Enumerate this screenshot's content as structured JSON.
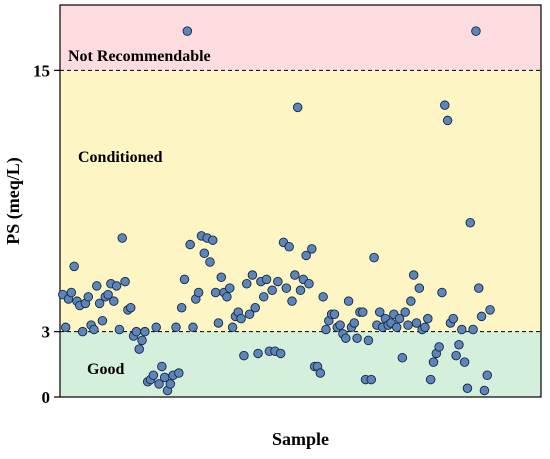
{
  "chart_data": {
    "type": "scatter",
    "xlabel": "Sample",
    "ylabel": "PS (meq/L)",
    "ylim": [
      0,
      18
    ],
    "y_ticks": [
      {
        "value": 0,
        "label": "0"
      },
      {
        "value": 3,
        "label": "3"
      },
      {
        "value": 15,
        "label": "15"
      }
    ],
    "x_range": [
      0,
      170
    ],
    "grid": false,
    "zones": [
      {
        "label": "Good",
        "from": 0,
        "to": 3,
        "color": "#d4f0dc"
      },
      {
        "label": "Conditioned",
        "from": 3,
        "to": 15,
        "color": "#fdf5c4"
      },
      {
        "label": "Not Recommendable",
        "from": 15,
        "to": 18,
        "color": "#fcdcdf"
      }
    ],
    "thresholds": [
      3,
      15
    ],
    "marker_color": "#5b86bb",
    "marker_edge": "#1a2740",
    "points": [
      [
        1,
        4.7
      ],
      [
        2,
        3.2
      ],
      [
        3,
        4.5
      ],
      [
        4,
        4.8
      ],
      [
        5,
        6
      ],
      [
        6,
        4.4
      ],
      [
        7,
        4.2
      ],
      [
        8,
        3
      ],
      [
        9,
        4.3
      ],
      [
        10,
        4.6
      ],
      [
        11,
        3.3
      ],
      [
        12,
        3.1
      ],
      [
        13,
        5.1
      ],
      [
        14,
        4.3
      ],
      [
        15,
        3.5
      ],
      [
        16,
        4.6
      ],
      [
        17,
        4.7
      ],
      [
        18,
        5.2
      ],
      [
        19,
        4.4
      ],
      [
        20,
        5.1
      ],
      [
        21,
        3.1
      ],
      [
        22,
        7.3
      ],
      [
        23,
        5.3
      ],
      [
        24,
        4
      ],
      [
        25,
        4.1
      ],
      [
        26,
        2.8
      ],
      [
        27,
        3
      ],
      [
        28,
        2.2
      ],
      [
        29,
        2.6
      ],
      [
        30,
        3
      ],
      [
        31,
        0.7
      ],
      [
        32,
        0.8
      ],
      [
        33,
        1
      ],
      [
        34,
        3.2
      ],
      [
        35,
        0.6
      ],
      [
        36,
        1.4
      ],
      [
        37,
        0.9
      ],
      [
        38,
        0.3
      ],
      [
        39,
        0.6
      ],
      [
        40,
        1
      ],
      [
        41,
        3.2
      ],
      [
        42,
        1.1
      ],
      [
        43,
        4.1
      ],
      [
        44,
        5.4
      ],
      [
        45,
        16.8
      ],
      [
        46,
        7
      ],
      [
        47,
        3.2
      ],
      [
        48,
        4.5
      ],
      [
        49,
        4.8
      ],
      [
        50,
        7.4
      ],
      [
        51,
        6.6
      ],
      [
        52,
        7.3
      ],
      [
        53,
        6.2
      ],
      [
        54,
        7.2
      ],
      [
        55,
        4.8
      ],
      [
        56,
        3.4
      ],
      [
        57,
        5.5
      ],
      [
        58,
        4.8
      ],
      [
        59,
        4.6
      ],
      [
        60,
        5
      ],
      [
        61,
        3.2
      ],
      [
        62,
        3.7
      ],
      [
        63,
        3.9
      ],
      [
        64,
        3.6
      ],
      [
        65,
        1.9
      ],
      [
        66,
        5.2
      ],
      [
        67,
        3.8
      ],
      [
        68,
        5.6
      ],
      [
        69,
        4.1
      ],
      [
        70,
        2
      ],
      [
        71,
        5.3
      ],
      [
        72,
        4.6
      ],
      [
        73,
        5.4
      ],
      [
        74,
        2.1
      ],
      [
        75,
        4.9
      ],
      [
        76,
        2.1
      ],
      [
        77,
        5.3
      ],
      [
        78,
        2
      ],
      [
        79,
        7.1
      ],
      [
        80,
        5
      ],
      [
        81,
        6.9
      ],
      [
        82,
        4.4
      ],
      [
        83,
        5.6
      ],
      [
        84,
        13.3
      ],
      [
        85,
        4.9
      ],
      [
        86,
        5.4
      ],
      [
        87,
        6.5
      ],
      [
        88,
        5.2
      ],
      [
        89,
        6.8
      ],
      [
        90,
        1.4
      ],
      [
        91,
        1.4
      ],
      [
        92,
        1.1
      ],
      [
        93,
        4.6
      ],
      [
        94,
        3.1
      ],
      [
        95,
        3.5
      ],
      [
        96,
        3.8
      ],
      [
        97,
        3.8
      ],
      [
        98,
        3.2
      ],
      [
        99,
        3.3
      ],
      [
        100,
        2.9
      ],
      [
        101,
        2.7
      ],
      [
        102,
        4.4
      ],
      [
        103,
        3.2
      ],
      [
        104,
        3.4
      ],
      [
        105,
        2.7
      ],
      [
        106,
        3.9
      ],
      [
        107,
        3.9
      ],
      [
        108,
        0.8
      ],
      [
        109,
        2.6
      ],
      [
        110,
        0.8
      ],
      [
        111,
        6.4
      ],
      [
        112,
        3.3
      ],
      [
        113,
        3.9
      ],
      [
        114,
        3.2
      ],
      [
        115,
        3.6
      ],
      [
        116,
        3.3
      ],
      [
        117,
        3.4
      ],
      [
        118,
        3.8
      ],
      [
        119,
        3.2
      ],
      [
        120,
        3.6
      ],
      [
        121,
        1.8
      ],
      [
        122,
        3.9
      ],
      [
        123,
        3.3
      ],
      [
        124,
        4.4
      ],
      [
        125,
        5.6
      ],
      [
        126,
        3.4
      ],
      [
        127,
        5
      ],
      [
        128,
        3.1
      ],
      [
        129,
        3.2
      ],
      [
        130,
        3.6
      ],
      [
        131,
        0.8
      ],
      [
        132,
        1.6
      ],
      [
        133,
        2
      ],
      [
        134,
        2.3
      ],
      [
        135,
        4.8
      ],
      [
        136,
        13.4
      ],
      [
        137,
        12.7
      ],
      [
        138,
        3.4
      ],
      [
        139,
        3.6
      ],
      [
        140,
        1.9
      ],
      [
        141,
        2.4
      ],
      [
        142,
        3.1
      ],
      [
        143,
        1.6
      ],
      [
        144,
        0.4
      ],
      [
        145,
        8
      ],
      [
        146,
        3.1
      ],
      [
        147,
        16.8
      ],
      [
        148,
        5
      ],
      [
        149,
        3.7
      ],
      [
        150,
        0.3
      ],
      [
        151,
        1
      ],
      [
        152,
        4
      ]
    ]
  }
}
